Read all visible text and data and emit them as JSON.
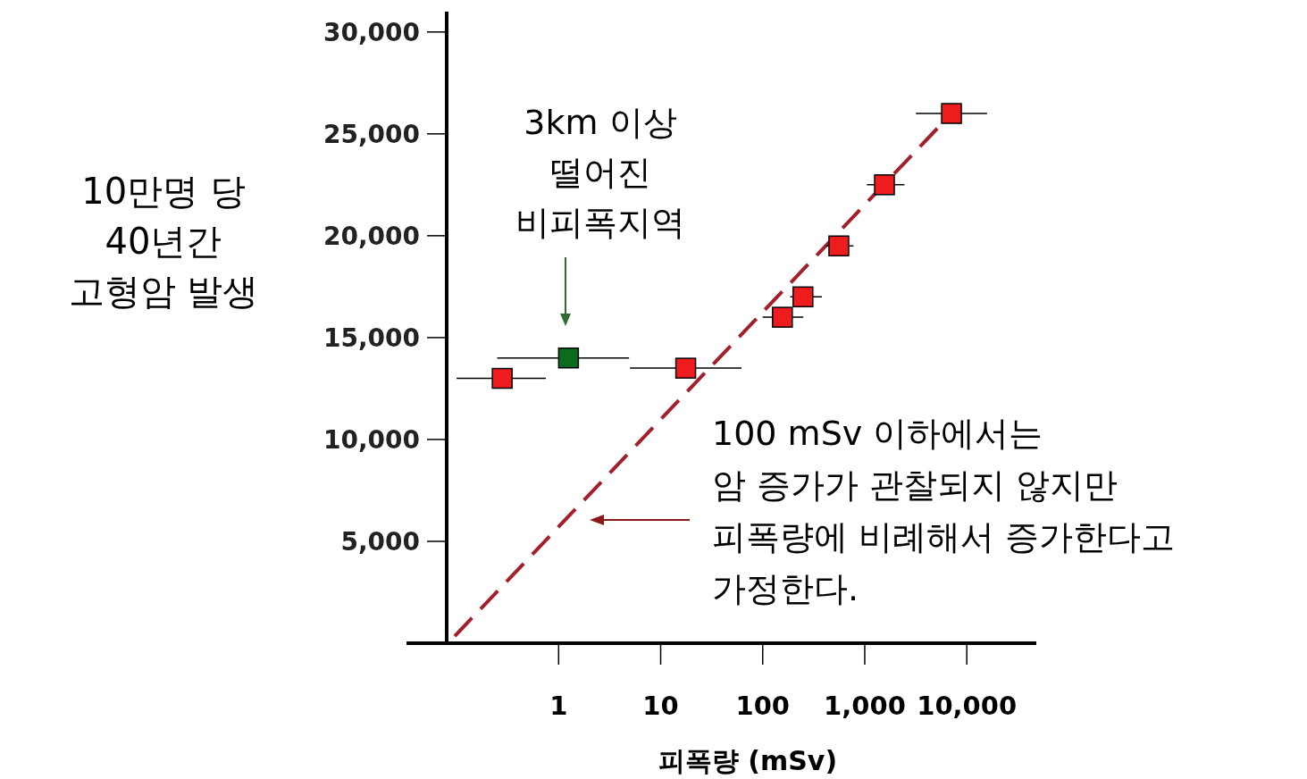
{
  "chart_data": {
    "type": "scatter",
    "log": "x",
    "grid": false,
    "xlabel": "피폭량 (mSv)",
    "ylabel": "10만명 당\n40년간\n고형암 발생",
    "xlim": [
      0.08,
      48000
    ],
    "ylim": [
      0,
      31000
    ],
    "xticks": [
      1,
      10,
      100,
      {
        "value": 1000,
        "label": "1,000"
      },
      {
        "value": 10000,
        "label": "10,000"
      }
    ],
    "yticks": [
      {
        "value": 5000,
        "label": "5,000"
      },
      {
        "value": 10000,
        "label": "10,000"
      },
      {
        "value": 15000,
        "label": "15,000"
      },
      {
        "value": 20000,
        "label": "20,000"
      },
      {
        "value": 25000,
        "label": "25,000"
      },
      {
        "value": 30000,
        "label": "30,000"
      }
    ],
    "series": [
      {
        "type": "line",
        "color": "#a31f2b",
        "line_style": "dashed",
        "x": [
          0.096,
          7080
        ],
        "values": [
          350,
          26000
        ]
      },
      {
        "marker": "square",
        "x": [
          0.28,
          1.25,
          17.6,
          156,
          248,
          557,
          1560,
          7080
        ],
        "values": [
          13000,
          14000,
          13500,
          16000,
          17000,
          19500,
          22500,
          26000
        ],
        "colors": [
          "#ee1c1c",
          "#0b6b1e",
          "#ee1c1c",
          "#ee1c1c",
          "#ee1c1c",
          "#ee1c1c",
          "#ee1c1c",
          "#ee1c1c"
        ],
        "xerrors": [
          [
            0.1,
            0.75
          ],
          [
            0.25,
            4.9
          ],
          [
            5,
            62
          ],
          [
            100,
            250
          ],
          [
            186,
            380
          ],
          [
            420,
            775
          ],
          [
            1050,
            2450
          ],
          [
            3170,
            15800
          ]
        ]
      }
    ],
    "annotations": [
      "3km 이상\n떨어진\n비피폭지역",
      "100 mSv 이하에서는\n암 증가가 관찰되지 않지만\n피폭량에 비례해서 증가한다고\n가정한다."
    ]
  }
}
